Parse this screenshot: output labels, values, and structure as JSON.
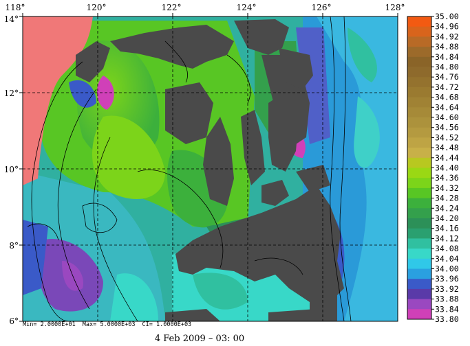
{
  "map": {
    "x_ticks": [
      "118°",
      "120°",
      "122°",
      "124°",
      "126°",
      "128°"
    ],
    "y_ticks": [
      "14°",
      "12°",
      "10°",
      "8°",
      "6°"
    ],
    "lon_range": [
      118,
      128
    ],
    "lat_range": [
      6,
      14
    ]
  },
  "colorbar": {
    "labels": [
      "35.00",
      "34.96",
      "34.92",
      "34.88",
      "34.84",
      "34.80",
      "34.76",
      "34.72",
      "34.68",
      "34.64",
      "34.60",
      "34.56",
      "34.52",
      "34.48",
      "34.44",
      "34.40",
      "34.36",
      "34.32",
      "34.28",
      "34.24",
      "34.20",
      "34.16",
      "34.12",
      "34.08",
      "34.04",
      "34.00",
      "33.96",
      "33.92",
      "33.88",
      "33.84",
      "33.80"
    ],
    "colors": [
      "#f25a12",
      "#d8641c",
      "#b86a26",
      "#9c6a2a",
      "#8a6428",
      "#8e6a2c",
      "#94722e",
      "#9a7a30",
      "#a08234",
      "#a68a38",
      "#ac923c",
      "#b49a40",
      "#bea444",
      "#c8b048",
      "#b8c820",
      "#9ad814",
      "#7cd41a",
      "#58c624",
      "#3cb03c",
      "#34a04c",
      "#2c9058",
      "#2aa070",
      "#30c0a0",
      "#38d8c8",
      "#30c8e8",
      "#2aa0e0",
      "#3a5ac8",
      "#5a3aa8",
      "#9a48c0",
      "#d040b8",
      "#f07878"
    ]
  },
  "stats": {
    "min": "Min= 2.0000E+01",
    "max": "Max= 5.0000E+03",
    "ci": "CI= 1.0000E+03"
  },
  "date": "4 Feb 2009 – 03: 00"
}
